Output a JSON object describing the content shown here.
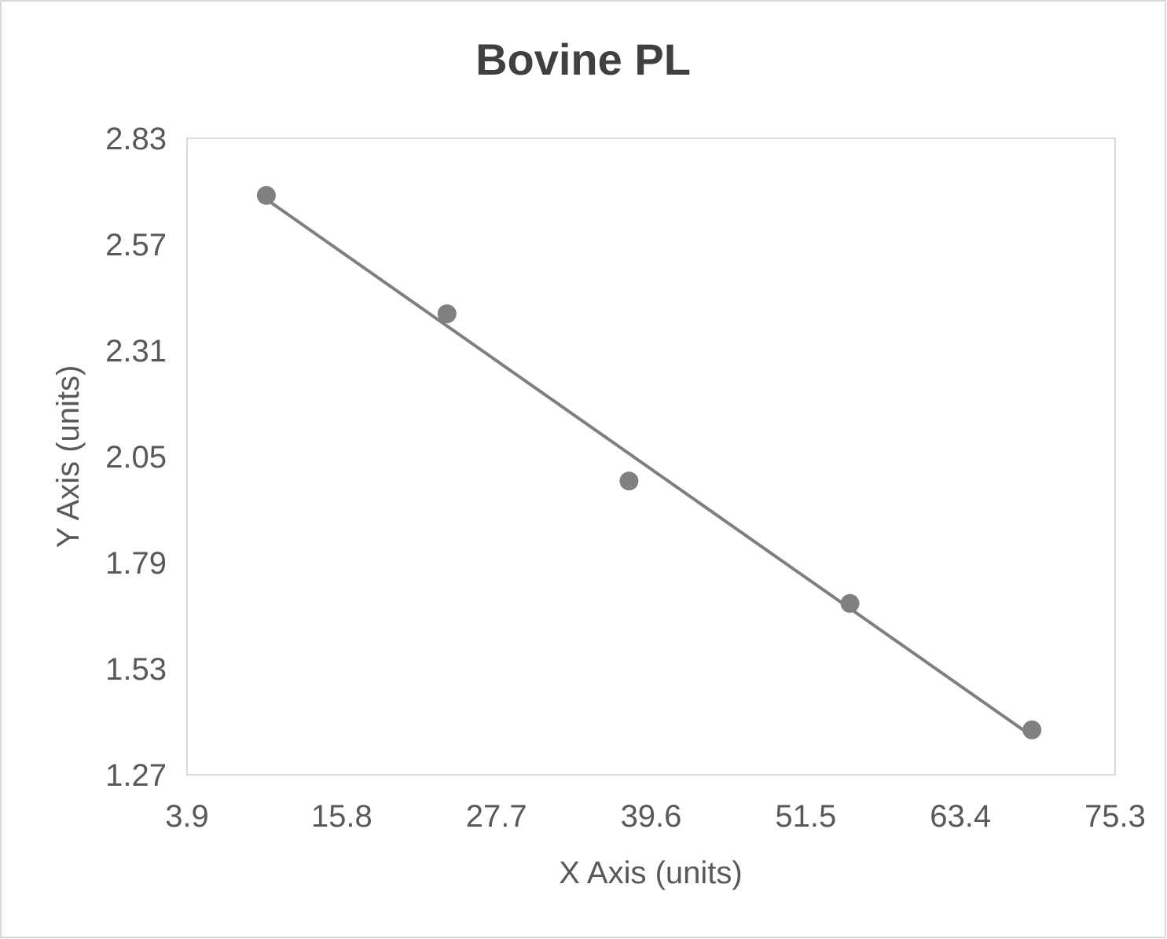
{
  "chart_data": {
    "type": "scatter",
    "title": "Bovine PL",
    "xlabel": "X Axis (units)",
    "ylabel": "Y Axis (units)",
    "xlim": [
      3.9,
      75.3
    ],
    "ylim": [
      1.27,
      2.83
    ],
    "xticks": [
      "3.9",
      "15.8",
      "27.7",
      "39.6",
      "51.5",
      "63.4",
      "75.3"
    ],
    "yticks": [
      "1.27",
      "1.53",
      "1.79",
      "2.05",
      "2.31",
      "2.57",
      "2.83"
    ],
    "grid": false,
    "legend": "none",
    "trendline": "linear",
    "points": [
      {
        "x": 10.0,
        "y": 2.69
      },
      {
        "x": 23.9,
        "y": 2.4
      },
      {
        "x": 37.9,
        "y": 1.99
      },
      {
        "x": 54.9,
        "y": 1.69
      },
      {
        "x": 68.9,
        "y": 1.38
      }
    ],
    "colors": {
      "marker": "#808080",
      "trendline": "#7f7f7f",
      "text": "#595959",
      "title": "#404040",
      "border": "#d9d9d9"
    }
  }
}
